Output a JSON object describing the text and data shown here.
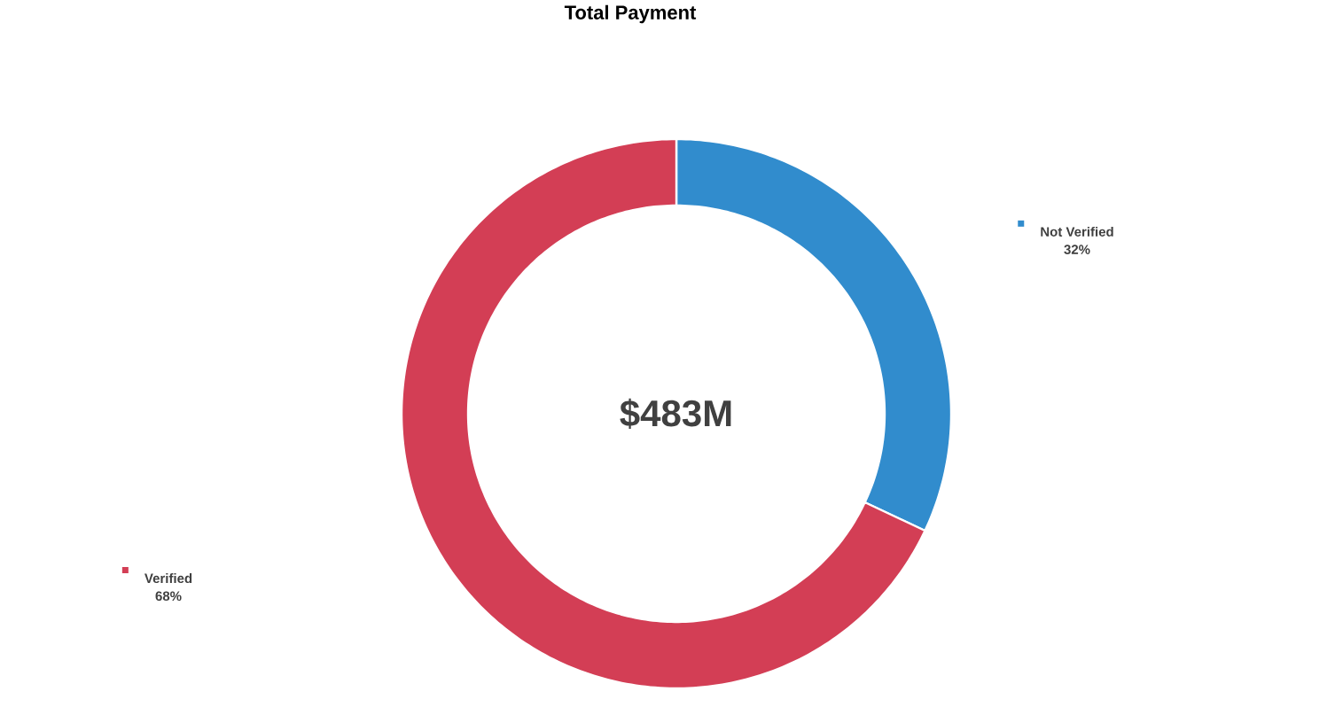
{
  "chart_data": {
    "type": "donut",
    "title": "Total Payment",
    "categories": [
      "Not Verified",
      "Verified"
    ],
    "values": [
      32,
      68
    ],
    "colors": [
      "#318ccd",
      "#d33e55"
    ],
    "value_labels": [
      "32%",
      "68%"
    ],
    "annotations": [
      "$483M"
    ],
    "legend": "top left"
  }
}
